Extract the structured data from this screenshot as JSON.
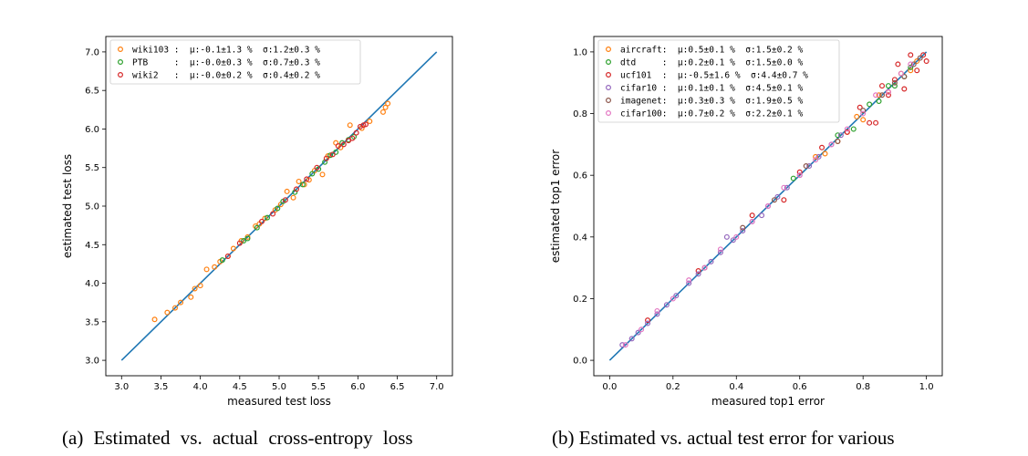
{
  "colors": {
    "diagonal": "#1f77b4",
    "orange": "#ff7f0e",
    "green": "#2ca02c",
    "red": "#d62728",
    "purple": "#9467bd",
    "brown": "#8c564b",
    "pink": "#e377c2"
  },
  "chart_data": [
    {
      "type": "scatter",
      "xlabel": "measured test loss",
      "ylabel": "estimated test loss",
      "xlim": [
        2.8,
        7.2
      ],
      "ylim": [
        2.8,
        7.2
      ],
      "xticks": [
        "3.0",
        "3.5",
        "4.0",
        "4.5",
        "5.0",
        "5.5",
        "6.0",
        "6.5",
        "7.0"
      ],
      "yticks": [
        "3.0",
        "3.5",
        "4.0",
        "4.5",
        "5.0",
        "5.5",
        "6.0",
        "6.5",
        "7.0"
      ],
      "reference_line": [
        [
          3.0,
          3.0
        ],
        [
          7.0,
          7.0
        ]
      ],
      "legend_position": "upper-left",
      "legend": [
        {
          "label": "wiki103 :  μ:-0.1±1.3 %  σ:1.2±0.3 %",
          "color": "orange"
        },
        {
          "label": "PTB     :  μ:-0.0±0.3 %  σ:0.7±0.3 %",
          "color": "green"
        },
        {
          "label": "wiki2   :  μ:-0.0±0.2 %  σ:0.4±0.2 %",
          "color": "red"
        }
      ],
      "series": [
        {
          "color": "orange",
          "x": [
            3.42,
            3.58,
            3.68,
            3.75,
            3.88,
            3.93,
            4.0,
            4.08,
            4.18,
            4.25,
            4.35,
            4.42,
            4.52,
            4.6,
            4.7,
            4.75,
            4.82,
            4.95,
            5.02,
            5.1,
            5.18,
            5.25,
            5.32,
            5.38,
            5.45,
            5.55,
            5.62,
            5.72,
            5.78,
            5.9,
            6.05,
            6.15,
            6.32,
            6.35,
            6.38
          ],
          "y": [
            3.53,
            3.62,
            3.68,
            3.75,
            3.82,
            3.93,
            3.97,
            4.18,
            4.21,
            4.28,
            4.35,
            4.45,
            4.55,
            4.6,
            4.74,
            4.77,
            4.84,
            4.95,
            5.02,
            5.19,
            5.11,
            5.32,
            5.28,
            5.34,
            5.46,
            5.41,
            5.65,
            5.82,
            5.76,
            6.05,
            6.01,
            6.1,
            6.22,
            6.28,
            6.33
          ]
        },
        {
          "color": "green",
          "x": [
            4.28,
            4.55,
            4.6,
            4.72,
            4.85,
            4.98,
            5.05,
            5.2,
            5.3,
            5.42,
            5.5,
            5.58,
            5.65,
            5.72,
            5.8,
            5.88,
            5.95
          ],
          "y": [
            4.3,
            4.55,
            4.58,
            4.72,
            4.85,
            4.97,
            5.06,
            5.18,
            5.28,
            5.42,
            5.48,
            5.57,
            5.66,
            5.7,
            5.82,
            5.86,
            5.9
          ]
        },
        {
          "color": "red",
          "x": [
            4.35,
            4.5,
            4.78,
            4.92,
            5.08,
            5.22,
            5.35,
            5.48,
            5.6,
            5.68,
            5.75,
            5.82,
            5.88,
            5.93,
            5.98,
            6.03,
            6.07,
            6.1
          ],
          "y": [
            4.35,
            4.52,
            4.8,
            4.9,
            5.08,
            5.22,
            5.35,
            5.5,
            5.62,
            5.67,
            5.78,
            5.8,
            5.85,
            5.88,
            5.95,
            6.03,
            6.05,
            6.06
          ]
        }
      ]
    },
    {
      "type": "scatter",
      "xlabel": "measured top1 error",
      "ylabel": "estimated top1 error",
      "xlim": [
        -0.05,
        1.05
      ],
      "ylim": [
        -0.05,
        1.05
      ],
      "xticks": [
        "0.0",
        "0.2",
        "0.4",
        "0.6",
        "0.8",
        "1.0"
      ],
      "yticks": [
        "0.0",
        "0.2",
        "0.4",
        "0.6",
        "0.8",
        "1.0"
      ],
      "reference_line": [
        [
          0.0,
          0.0
        ],
        [
          1.0,
          1.0
        ]
      ],
      "legend_position": "upper-left",
      "legend": [
        {
          "label": "aircraft:  μ:0.5±0.1 %  σ:1.5±0.2 %",
          "color": "orange"
        },
        {
          "label": "dtd     :  μ:0.2±0.1 %  σ:1.5±0.0 %",
          "color": "green"
        },
        {
          "label": "ucf101  :  μ:-0.5±1.6 %  σ:4.4±0.7 %",
          "color": "red"
        },
        {
          "label": "cifar10 :  μ:0.1±0.1 %  σ:4.5±0.1 %",
          "color": "purple"
        },
        {
          "label": "imagenet:  μ:0.3±0.3 %  σ:1.9±0.5 %",
          "color": "brown"
        },
        {
          "label": "cifar100:  μ:0.7±0.2 %  σ:2.2±0.1 %",
          "color": "pink"
        }
      ],
      "series": [
        {
          "color": "orange",
          "x": [
            0.65,
            0.68,
            0.72,
            0.75,
            0.78,
            0.8,
            0.85,
            0.88,
            0.92,
            0.95,
            0.97
          ],
          "y": [
            0.66,
            0.67,
            0.71,
            0.74,
            0.79,
            0.78,
            0.86,
            0.87,
            0.93,
            0.94,
            0.97
          ]
        },
        {
          "color": "green",
          "x": [
            0.58,
            0.72,
            0.77,
            0.82,
            0.85,
            0.88,
            0.9,
            0.93,
            0.95
          ],
          "y": [
            0.59,
            0.73,
            0.75,
            0.83,
            0.84,
            0.89,
            0.89,
            0.92,
            0.95
          ]
        },
        {
          "color": "red",
          "x": [
            0.12,
            0.28,
            0.45,
            0.55,
            0.6,
            0.67,
            0.75,
            0.79,
            0.82,
            0.84,
            0.86,
            0.88,
            0.9,
            0.91,
            0.93,
            0.95,
            0.97,
            0.99,
            1.0
          ],
          "y": [
            0.13,
            0.29,
            0.47,
            0.52,
            0.61,
            0.69,
            0.74,
            0.82,
            0.77,
            0.77,
            0.89,
            0.86,
            0.91,
            0.96,
            0.88,
            0.99,
            0.94,
            0.99,
            0.97
          ]
        },
        {
          "color": "purple",
          "x": [
            0.04,
            0.07,
            0.09,
            0.12,
            0.15,
            0.18,
            0.21,
            0.25,
            0.28,
            0.32,
            0.35,
            0.37,
            0.39,
            0.42,
            0.45,
            0.48,
            0.5,
            0.53,
            0.56,
            0.6,
            0.63,
            0.66,
            0.7,
            0.73
          ],
          "y": [
            0.05,
            0.07,
            0.09,
            0.12,
            0.15,
            0.18,
            0.21,
            0.25,
            0.28,
            0.32,
            0.35,
            0.4,
            0.39,
            0.42,
            0.45,
            0.47,
            0.5,
            0.53,
            0.56,
            0.6,
            0.63,
            0.66,
            0.7,
            0.73
          ]
        },
        {
          "color": "brown",
          "x": [
            0.3,
            0.42,
            0.52,
            0.62,
            0.72,
            0.8,
            0.86,
            0.9,
            0.93,
            0.96,
            0.98
          ],
          "y": [
            0.3,
            0.43,
            0.52,
            0.63,
            0.71,
            0.81,
            0.86,
            0.9,
            0.92,
            0.96,
            0.98
          ]
        },
        {
          "color": "pink",
          "x": [
            0.05,
            0.1,
            0.15,
            0.2,
            0.25,
            0.3,
            0.35,
            0.4,
            0.45,
            0.5,
            0.55,
            0.6,
            0.65,
            0.7,
            0.75,
            0.8,
            0.84,
            0.88,
            0.92,
            0.95
          ],
          "y": [
            0.05,
            0.1,
            0.16,
            0.2,
            0.26,
            0.3,
            0.36,
            0.4,
            0.45,
            0.5,
            0.56,
            0.6,
            0.65,
            0.7,
            0.75,
            0.8,
            0.86,
            0.87,
            0.93,
            0.96
          ]
        }
      ]
    }
  ],
  "captions": {
    "a": "(a) Estimated vs. actual cross-entropy loss",
    "b": "(b) Estimated vs. actual test error for various"
  }
}
